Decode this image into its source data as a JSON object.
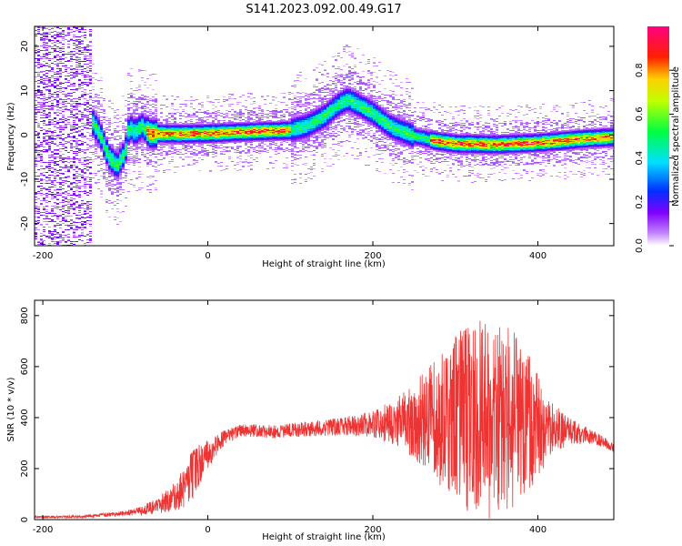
{
  "figure_title": "S141.2023.092.00.49.G17",
  "chart_data": [
    {
      "type": "heatmap",
      "xlabel": "Height of straight line (km)",
      "ylabel": "Frequency (Hz)",
      "xlim": [
        -210,
        492
      ],
      "ylim": [
        -25,
        24.5
      ],
      "x_ticks": [
        -200,
        0,
        200,
        400
      ],
      "y_ticks": [
        -20,
        -10,
        0,
        10,
        20
      ],
      "colorbar": {
        "label": "Normalized spectral amplitude",
        "range": [
          0,
          1
        ],
        "ticks": [
          0.0,
          0.2,
          0.4,
          0.6,
          0.8
        ],
        "colors": [
          "#ffffff",
          "#8000ff",
          "#0040ff",
          "#00ffff",
          "#00ff00",
          "#ffff00",
          "#ff0000",
          "#ff0080"
        ]
      },
      "ridge": {
        "x": [
          -160,
          -150,
          -140,
          -130,
          -120,
          -110,
          -100,
          -95,
          -88,
          -80,
          -70,
          -40,
          0,
          50,
          100,
          120,
          140,
          160,
          170,
          180,
          200,
          220,
          250,
          280,
          300,
          350,
          400,
          450,
          492
        ],
        "y": [
          4,
          4.5,
          3,
          0,
          -5,
          -7,
          -4,
          2,
          0.5,
          2,
          0.3,
          0.2,
          0.3,
          0.7,
          1,
          2,
          4,
          7,
          8,
          7,
          5,
          2,
          -0.3,
          -1.5,
          -2,
          -2.2,
          -1.8,
          -1,
          -0.5
        ]
      },
      "noise_region_x": [
        -210,
        -140
      ]
    },
    {
      "type": "line",
      "xlabel": "Height of straight line (km)",
      "ylabel": "SNR (10 * v/v)",
      "xlim": [
        -210,
        492
      ],
      "ylim": [
        0,
        860
      ],
      "x_ticks": [
        -200,
        0,
        200,
        400
      ],
      "y_ticks": [
        0,
        200,
        400,
        600,
        800
      ],
      "color": "#ee3333",
      "envelope": {
        "x": [
          -210,
          -150,
          -100,
          -80,
          -60,
          -40,
          -30,
          -20,
          0,
          20,
          40,
          80,
          120,
          160,
          200,
          240,
          280,
          300,
          320,
          340,
          360,
          380,
          400,
          420,
          440,
          470,
          492
        ],
        "mean": [
          10,
          12,
          25,
          35,
          55,
          90,
          120,
          170,
          260,
          320,
          350,
          345,
          355,
          365,
          375,
          385,
          390,
          395,
          395,
          390,
          385,
          380,
          370,
          360,
          345,
          320,
          280
        ],
        "amp": [
          4,
          5,
          10,
          20,
          30,
          60,
          80,
          100,
          60,
          30,
          25,
          25,
          30,
          35,
          50,
          120,
          250,
          330,
          380,
          400,
          380,
          330,
          200,
          100,
          50,
          25,
          20
        ]
      }
    }
  ]
}
